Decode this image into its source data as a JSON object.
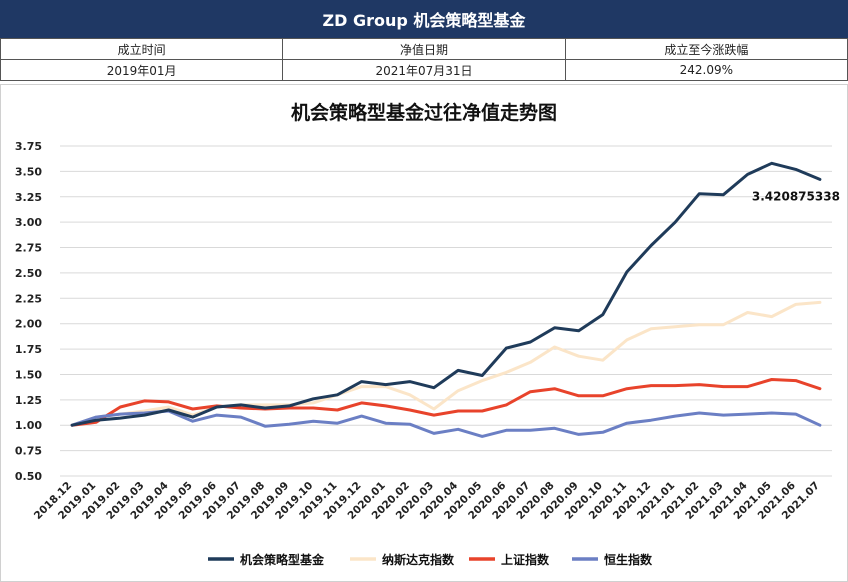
{
  "header": {
    "title": "ZD Group  机会策略型基金"
  },
  "info_table": {
    "headers": [
      "成立时间",
      "净值日期",
      "成立至今涨跌幅"
    ],
    "values": [
      "2019年01月",
      "2021年07月31日",
      "242.09%"
    ]
  },
  "chart_data": {
    "type": "line",
    "title": "机会策略型基金过往净值走势图",
    "xlabel": "",
    "ylabel": "",
    "ylim": [
      0.5,
      3.75
    ],
    "yticks": [
      0.5,
      0.75,
      1.0,
      1.25,
      1.5,
      1.75,
      2.0,
      2.25,
      2.5,
      2.75,
      3.0,
      3.25,
      3.5,
      3.75
    ],
    "ytick_labels": [
      "0.50",
      "0.75",
      "1.00",
      "1.25",
      "1.50",
      "1.75",
      "2.00",
      "2.25",
      "2.50",
      "2.75",
      "3.00",
      "3.25",
      "3.50",
      "3.75"
    ],
    "grid": true,
    "legend_position": "bottom",
    "x": [
      "2018.12",
      "2019.01",
      "2019.02",
      "2019.03",
      "2019.04",
      "2019.05",
      "2019.06",
      "2019.07",
      "2019.08",
      "2019.09",
      "2019.10",
      "2019.11",
      "2019.12",
      "2020.01",
      "2020.02",
      "2020.03",
      "2020.04",
      "2020.05",
      "2020.06",
      "2020.07",
      "2020.08",
      "2020.09",
      "2020.10",
      "2020.11",
      "2020.12",
      "2021.01",
      "2021.02",
      "2021.03",
      "2021.04",
      "2021.05",
      "2021.06",
      "2021.07"
    ],
    "series": [
      {
        "name": "机会策略型基金",
        "color": "#1f3b5a",
        "values": [
          1.0,
          1.05,
          1.07,
          1.1,
          1.15,
          1.08,
          1.18,
          1.2,
          1.17,
          1.19,
          1.26,
          1.3,
          1.43,
          1.4,
          1.43,
          1.37,
          1.54,
          1.49,
          1.76,
          1.82,
          1.96,
          1.93,
          2.09,
          2.51,
          2.77,
          3.0,
          3.28,
          3.27,
          3.47,
          3.58,
          3.52,
          3.420875338
        ]
      },
      {
        "name": "纳斯达克指数",
        "color": "#fbe5c8",
        "values": [
          1.0,
          1.08,
          1.11,
          1.14,
          1.18,
          1.1,
          1.18,
          1.2,
          1.2,
          1.2,
          1.22,
          1.3,
          1.38,
          1.38,
          1.3,
          1.16,
          1.34,
          1.44,
          1.52,
          1.62,
          1.77,
          1.68,
          1.64,
          1.84,
          1.95,
          1.97,
          1.99,
          1.99,
          2.11,
          2.07,
          2.19,
          2.21
        ]
      },
      {
        "name": "上证指数",
        "color": "#e8432b",
        "values": [
          1.0,
          1.03,
          1.18,
          1.24,
          1.23,
          1.16,
          1.19,
          1.17,
          1.16,
          1.17,
          1.17,
          1.15,
          1.22,
          1.19,
          1.15,
          1.1,
          1.14,
          1.14,
          1.2,
          1.33,
          1.36,
          1.29,
          1.29,
          1.36,
          1.39,
          1.39,
          1.4,
          1.38,
          1.38,
          1.45,
          1.44,
          1.36
        ]
      },
      {
        "name": "恒生指数",
        "color": "#6b7fc4",
        "values": [
          1.0,
          1.08,
          1.11,
          1.12,
          1.14,
          1.04,
          1.1,
          1.08,
          0.99,
          1.01,
          1.04,
          1.02,
          1.09,
          1.02,
          1.01,
          0.92,
          0.96,
          0.89,
          0.95,
          0.95,
          0.97,
          0.91,
          0.93,
          1.02,
          1.05,
          1.09,
          1.12,
          1.1,
          1.11,
          1.12,
          1.11,
          1.0
        ]
      }
    ],
    "annotations": [
      {
        "text": "3.420875338",
        "series": "机会策略型基金",
        "x": "2021.07"
      }
    ]
  }
}
